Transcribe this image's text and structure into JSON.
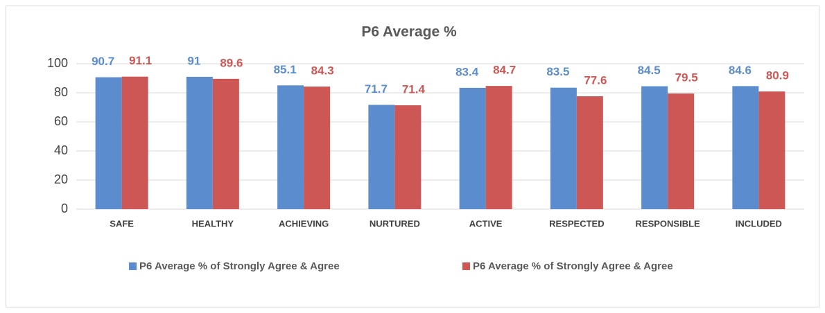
{
  "chart_data": {
    "type": "bar",
    "title": "P6 Average %",
    "categories": [
      "SAFE",
      "HEALTHY",
      "ACHIEVING",
      "NURTURED",
      "ACTIVE",
      "RESPECTED",
      "RESPONSIBLE",
      "INCLUDED"
    ],
    "series": [
      {
        "name": "P6 Average % of Strongly Agree & Agree",
        "color": "#5b8dce",
        "values": [
          90.7,
          91,
          85.1,
          71.7,
          83.4,
          83.5,
          84.5,
          84.6
        ]
      },
      {
        "name": "P6 Average % of Strongly Agree & Agree",
        "color": "#cd5754",
        "values": [
          91.1,
          89.6,
          84.3,
          71.4,
          84.7,
          77.6,
          79.5,
          80.9
        ]
      }
    ],
    "ylim": [
      0,
      100
    ],
    "yticks": [
      0,
      20,
      40,
      60,
      80,
      100
    ],
    "grid": true,
    "legend": "bottom"
  }
}
